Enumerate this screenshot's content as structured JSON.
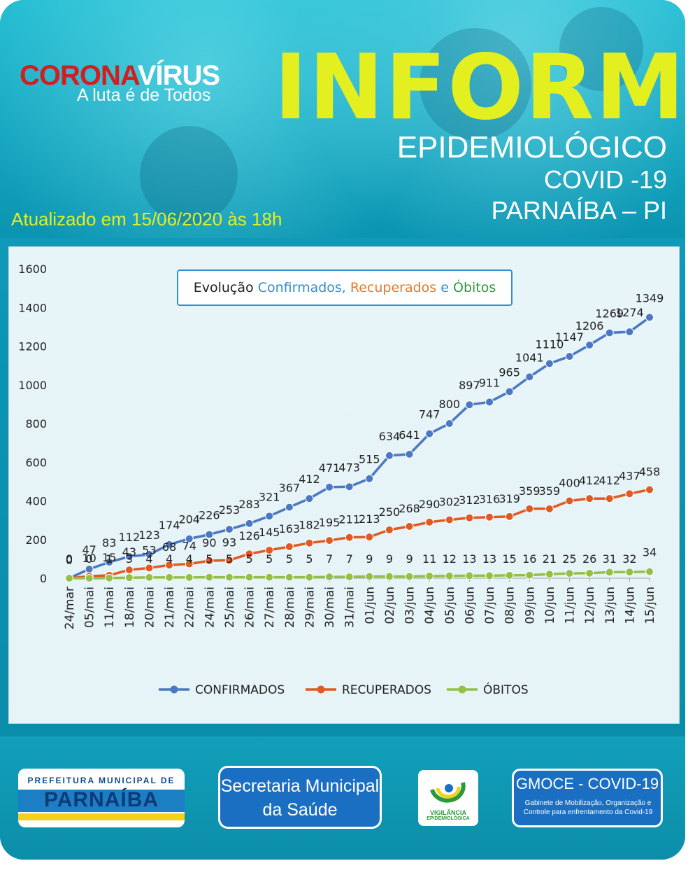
{
  "header": {
    "logo_part1": "CORONA",
    "logo_part2": "VÍRUS",
    "logo_tagline": "A luta é de Todos",
    "title": "INFORME",
    "subtitle": "EPIDEMIOLÓGICO",
    "covid": "COVID -19",
    "city": "PARNAÍBA – PI",
    "updated": "Atualizado em 15/06/2020 às 18h"
  },
  "chart_data": {
    "type": "line",
    "title_parts": [
      {
        "text": "Evolução ",
        "color": "#222222"
      },
      {
        "text": "Confirmados, ",
        "color": "#2f8fd6"
      },
      {
        "text": "Recuperados ",
        "color": "#e57a28"
      },
      {
        "text": "e ",
        "color": "#2f8fd6"
      },
      {
        "text": "Óbitos",
        "color": "#2c9a3f"
      }
    ],
    "ylim": [
      0,
      1600
    ],
    "yticks": [
      0,
      200,
      400,
      600,
      800,
      1000,
      1200,
      1400,
      1600
    ],
    "categories": [
      "24/mar",
      "05/mai",
      "11/mai",
      "18/mai",
      "20/mai",
      "21/mai",
      "22/mai",
      "24/mai",
      "25/mai",
      "26/mai",
      "27/mai",
      "28/mai",
      "29/mai",
      "30/mai",
      "31/mai",
      "01/jun",
      "02/jun",
      "03/jun",
      "04/jun",
      "05/jun",
      "06/jun",
      "07/jun",
      "08/jun",
      "09/jun",
      "10/jun",
      "11/jun",
      "12/jun",
      "13/jun",
      "14/jun",
      "15/jun"
    ],
    "series": [
      {
        "name": "CONFIRMADOS",
        "color": "#4a78c2",
        "values": [
          0,
          47,
          83,
          112,
          123,
          174,
          204,
          226,
          253,
          283,
          321,
          367,
          412,
          471,
          473,
          515,
          634,
          641,
          747,
          800,
          897,
          911,
          965,
          1041,
          1110,
          1147,
          1206,
          1269,
          1274,
          1349
        ]
      },
      {
        "name": "RECUPERADOS",
        "color": "#df5b24",
        "values": [
          0,
          10,
          15,
          43,
          53,
          68,
          74,
          90,
          93,
          126,
          145,
          163,
          182,
          195,
          211,
          213,
          250,
          268,
          290,
          302,
          312,
          316,
          319,
          359,
          359,
          400,
          412,
          412,
          437,
          458
        ]
      },
      {
        "name": "ÓBITOS",
        "color": "#93c047",
        "values": [
          0,
          0,
          1,
          3,
          4,
          4,
          4,
          5,
          5,
          5,
          5,
          5,
          5,
          7,
          7,
          9,
          9,
          9,
          11,
          12,
          13,
          13,
          15,
          16,
          21,
          25,
          26,
          31,
          32,
          34
        ]
      }
    ],
    "legend_position": "bottom",
    "grid": false
  },
  "footer": {
    "prefeitura_top": "PREFEITURA MUNICIPAL DE",
    "prefeitura_name": "PARNAÍBA",
    "secretaria_line1": "Secretaria Municipal",
    "secretaria_line2": "da Saúde",
    "vigilancia_line1": "VIGILÂNCIA",
    "vigilancia_line2": "EPIDEMIOLÓGICA",
    "gmoce_title": "GMOCE - COVID-19",
    "gmoce_desc": "Gabinete de Mobilização, Organização e Controle para enfrentamento da Covid-19"
  }
}
